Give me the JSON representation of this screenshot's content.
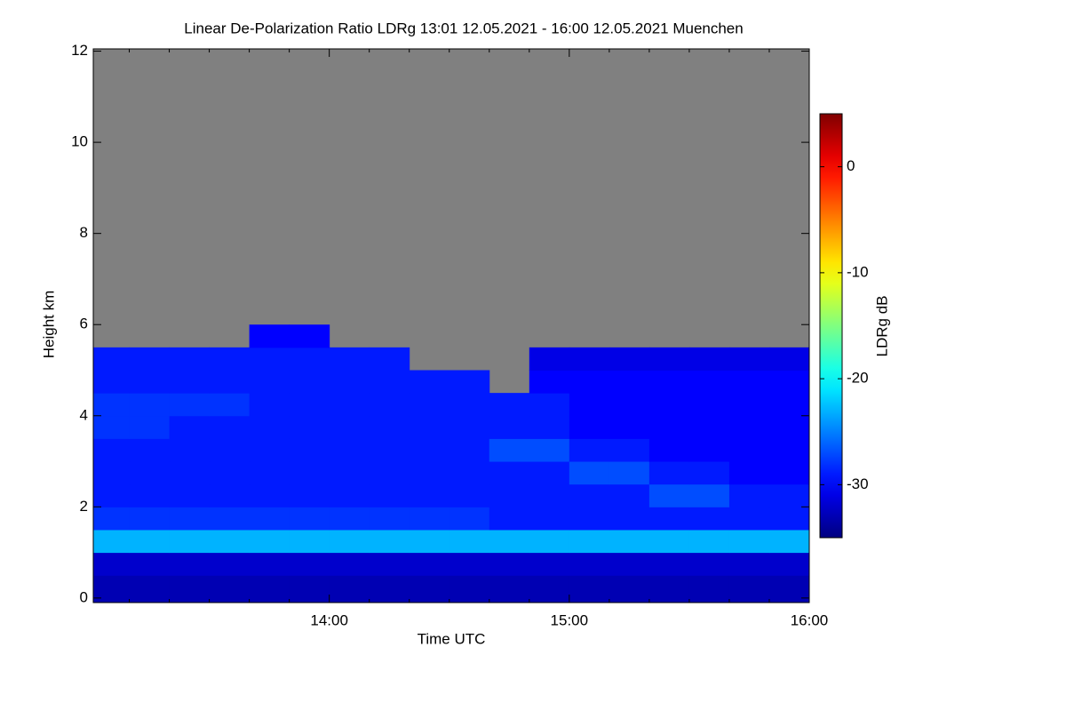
{
  "chart_data": {
    "type": "heatmap",
    "title": "Linear De-Polarization Ratio LDRg   13:01 12.05.2021 - 16:00 12.05.2021 Muenchen",
    "x_label": "Time UTC",
    "y_label": "Height km",
    "colorbar_label": "LDRg dB",
    "colormap": "jet",
    "nodata_color": "#808080",
    "xlim": [
      781,
      960
    ],
    "xticks": [
      {
        "value": 840,
        "label": "14:00"
      },
      {
        "value": 900,
        "label": "15:00"
      },
      {
        "value": 960,
        "label": "16:00"
      }
    ],
    "xminor_ticks": [
      790,
      800,
      810,
      820,
      830,
      850,
      860,
      870,
      880,
      890,
      910,
      920,
      930,
      940,
      950
    ],
    "ylim": [
      -0.1,
      12.05
    ],
    "yticks": [
      0,
      2,
      4,
      6,
      8,
      10,
      12
    ],
    "clim": [
      -35,
      5
    ],
    "cticks": [
      -30,
      -20,
      -10,
      0
    ],
    "x_edges": [
      781,
      790,
      800,
      810,
      820,
      830,
      840,
      850,
      860,
      870,
      880,
      890,
      900,
      910,
      920,
      930,
      940,
      950,
      960
    ],
    "y_edges": [
      -0.1,
      0.5,
      1,
      1.5,
      2,
      2.5,
      3,
      3.5,
      4,
      4.5,
      5,
      5.5,
      6,
      6.5,
      7,
      7.5,
      8,
      8.5,
      9,
      9.5,
      10,
      10.5,
      11,
      11.5,
      12.05
    ],
    "values": [
      [
        -33,
        -33,
        -33,
        -33,
        -33,
        -33,
        -33,
        -33,
        -33,
        -33,
        -33,
        -33,
        -33,
        -33,
        -33,
        -33,
        -33,
        -33
      ],
      [
        -32,
        -32,
        -32,
        -32,
        -32,
        -32,
        -32,
        -32,
        -32,
        -32,
        -32,
        -32,
        -32,
        -32,
        -32,
        -32,
        -32,
        -32
      ],
      [
        -23,
        -23,
        -23,
        -23,
        -23,
        -23,
        -23,
        -23,
        -23,
        -23,
        -23,
        -23,
        -23,
        -23,
        -23,
        -23,
        -23,
        -23
      ],
      [
        -28,
        -28,
        -28,
        -28,
        -28,
        -28,
        -28,
        -28,
        -28,
        -28,
        -29,
        -29,
        -29,
        -29,
        -29,
        -29,
        -29,
        -29
      ],
      [
        -29,
        -29,
        -29,
        -29,
        -29,
        -29,
        -29,
        -29,
        -29,
        -29,
        -29,
        -29,
        -29,
        -29,
        -27,
        -27,
        -29,
        -29
      ],
      [
        -29,
        -29,
        -29,
        -29,
        -29,
        -29,
        -29,
        -29,
        -29,
        -29,
        -29,
        -29,
        -27,
        -27,
        -29,
        -29,
        -30,
        -30
      ],
      [
        -29,
        -29,
        -29,
        -29,
        -29,
        -29,
        -29,
        -29,
        -29,
        -29,
        -27,
        -27,
        -29,
        -29,
        -30,
        -30,
        -30,
        -30
      ],
      [
        -28,
        -28,
        -29,
        -29,
        -29,
        -29,
        -29,
        -29,
        -29,
        -29,
        -29,
        -29,
        -30,
        -30,
        -30,
        -30,
        -30,
        -30
      ],
      [
        -28,
        -28,
        -28,
        -28,
        -29,
        -29,
        -29,
        -29,
        -29,
        -29,
        -29,
        -29,
        -30,
        -30,
        -30,
        -30,
        -30,
        -30
      ],
      [
        -29,
        -29,
        -29,
        -29,
        -29,
        -29,
        -29,
        -29,
        -29,
        -29,
        null,
        -30,
        -30,
        -30,
        -30,
        -30,
        -30,
        -30
      ],
      [
        -29,
        -29,
        -29,
        -29,
        -29,
        -29,
        -29,
        -29,
        null,
        null,
        null,
        -31,
        -31,
        -31,
        -31,
        -31,
        -31,
        -31
      ],
      [
        null,
        null,
        null,
        null,
        -30,
        -30,
        null,
        null,
        null,
        null,
        null,
        null,
        null,
        null,
        null,
        null,
        null,
        null
      ],
      [
        null,
        null,
        null,
        null,
        null,
        null,
        null,
        null,
        null,
        null,
        null,
        null,
        null,
        null,
        null,
        null,
        null,
        null
      ],
      [
        null,
        null,
        null,
        null,
        null,
        null,
        null,
        null,
        null,
        null,
        null,
        null,
        null,
        null,
        null,
        null,
        null,
        null
      ],
      [
        null,
        null,
        null,
        null,
        null,
        null,
        null,
        null,
        null,
        null,
        null,
        null,
        null,
        null,
        null,
        null,
        null,
        null
      ],
      [
        null,
        null,
        null,
        null,
        null,
        null,
        null,
        null,
        null,
        null,
        null,
        null,
        null,
        null,
        null,
        null,
        null,
        null
      ],
      [
        null,
        null,
        null,
        null,
        null,
        null,
        null,
        null,
        null,
        null,
        null,
        null,
        null,
        null,
        null,
        null,
        null,
        null
      ],
      [
        null,
        null,
        null,
        null,
        null,
        null,
        null,
        null,
        null,
        null,
        null,
        null,
        null,
        null,
        null,
        null,
        null,
        null
      ],
      [
        null,
        null,
        null,
        null,
        null,
        null,
        null,
        null,
        null,
        null,
        null,
        null,
        null,
        null,
        null,
        null,
        null,
        null
      ],
      [
        null,
        null,
        null,
        null,
        null,
        null,
        null,
        null,
        null,
        null,
        null,
        null,
        null,
        null,
        null,
        null,
        null,
        null
      ],
      [
        null,
        null,
        null,
        null,
        null,
        null,
        null,
        null,
        null,
        null,
        null,
        null,
        null,
        null,
        null,
        null,
        null,
        null
      ],
      [
        null,
        null,
        null,
        null,
        null,
        null,
        null,
        null,
        null,
        null,
        null,
        null,
        null,
        null,
        null,
        null,
        null,
        null
      ],
      [
        null,
        null,
        null,
        null,
        null,
        null,
        null,
        null,
        null,
        null,
        null,
        null,
        null,
        null,
        null,
        null,
        null,
        null
      ],
      [
        null,
        null,
        null,
        null,
        null,
        null,
        null,
        null,
        null,
        null,
        null,
        null,
        null,
        null,
        null,
        null,
        null,
        null
      ]
    ]
  }
}
